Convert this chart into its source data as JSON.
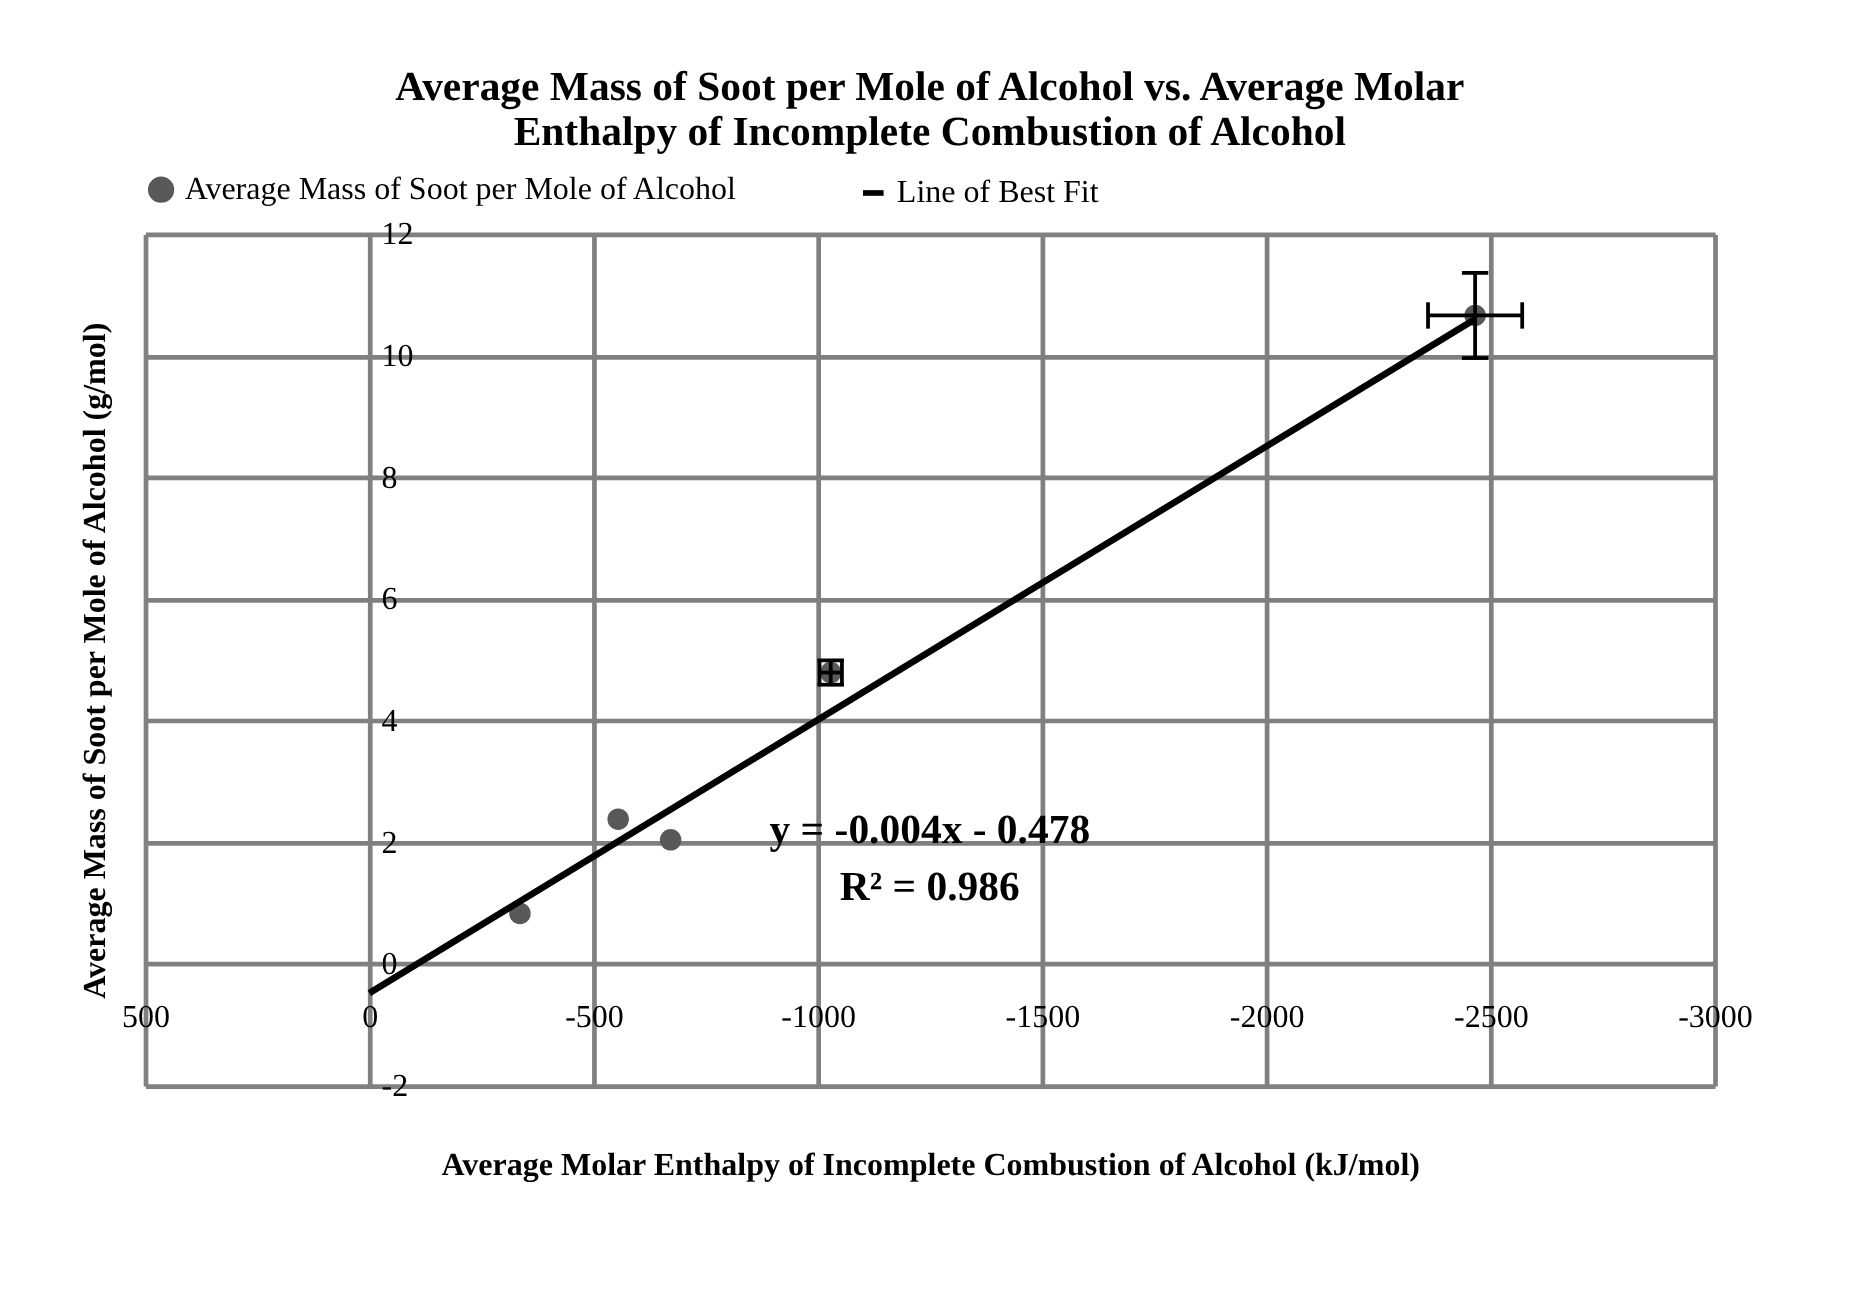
{
  "chart_data": {
    "type": "scatter",
    "title": [
      "Average Mass of Soot per Mole of Alcohol vs. Average Molar",
      "Enthalpy of Incomplete Combustion of Alcohol"
    ],
    "xlabel": "Average Molar Enthalpy of Incomplete Combustion of Alcohol (kJ/mol)",
    "ylabel": "Average Mass of Soot per Mole of Alcohol (g/mol)",
    "xlim": [
      500,
      -3000
    ],
    "xticks": [
      500,
      0,
      -500,
      -1000,
      -1500,
      -2000,
      -2500,
      -3000
    ],
    "ylim": [
      -2,
      12
    ],
    "yticks": [
      -2,
      0,
      2,
      4,
      6,
      8,
      10,
      12
    ],
    "series": [
      {
        "name": "Average Mass of Soot per Mole of Alcohol",
        "type": "scatter",
        "color": "#595959",
        "x": [
          -336,
          -555,
          -672,
          -1029,
          -2466
        ],
        "values": [
          0.83,
          2.38,
          2.04,
          4.79,
          10.66
        ],
        "errors": [
          null,
          null,
          null,
          0.2,
          0.7
        ],
        "xerrors": [
          null,
          null,
          null,
          25,
          105
        ],
        "marker": "circle"
      },
      {
        "name": "Line of Best Fit",
        "type": "line",
        "color": "#000000",
        "x": [
          0,
          -2466
        ],
        "values": [
          -0.48,
          10.6
        ],
        "line_style": "solid"
      }
    ],
    "annotations": [
      "y = -0.004x - 0.478",
      "R² = 0.986"
    ],
    "grid": true,
    "legend": "top"
  }
}
